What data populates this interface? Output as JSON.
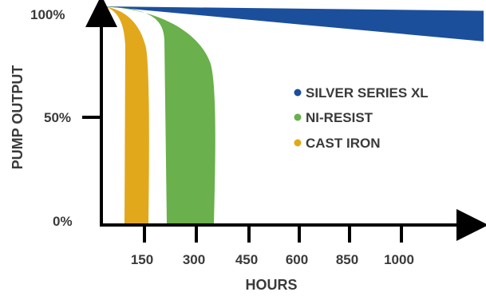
{
  "chart_data": {
    "type": "area",
    "title": "",
    "xlabel": "HOURS",
    "ylabel": "PUMP OUTPUT",
    "y_ticks": [
      {
        "label": "100%",
        "value": 100
      },
      {
        "label": "50%",
        "value": 50
      },
      {
        "label": "0%",
        "value": 0
      }
    ],
    "x_ticks": [
      "150",
      "300",
      "450",
      "600",
      "850",
      "1000"
    ],
    "legend_position": "center-right",
    "series": [
      {
        "name": "SILVER SERIES XL",
        "color": "#1b4f9c",
        "upper": [
          [
            0,
            100
          ],
          [
            6,
            98
          ]
        ],
        "lower": [
          [
            0,
            100
          ],
          [
            6,
            84
          ]
        ],
        "x_unit": "tick-index"
      },
      {
        "name": "NI-RESIST",
        "color": "#6ab04c",
        "left_edge_hours": [
          110,
          150
        ],
        "right_edge_hours": [
          240,
          400
        ],
        "end_output": 0
      },
      {
        "name": "CAST IRON",
        "color": "#e2a81c",
        "left_edge_hours": [
          60,
          90
        ],
        "right_edge_hours": [
          100,
          150
        ],
        "end_output": 0
      }
    ],
    "grid": false
  }
}
